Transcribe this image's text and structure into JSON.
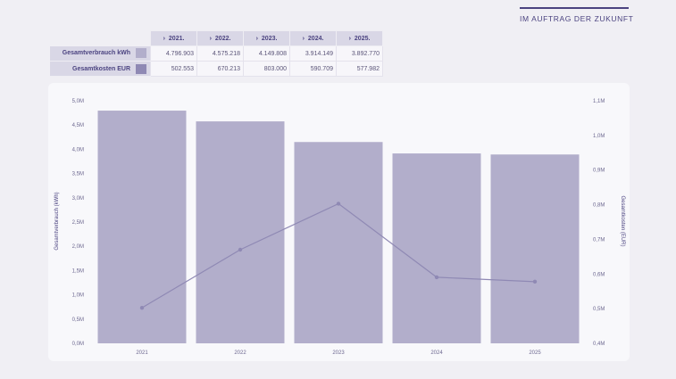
{
  "brand": {
    "tagline": "IM AUFTRAG DER ZUKUNFT"
  },
  "summary_table": {
    "years": [
      "2021.",
      "2022.",
      "2023.",
      "2024.",
      "2025."
    ],
    "rows": [
      {
        "label": "Gesamtverbrauch kWh",
        "swatch_color": "#b2aecb",
        "values": [
          "4.796.903",
          "4.575.218",
          "4.149.808",
          "3.914.149",
          "3.892.770"
        ]
      },
      {
        "label": "Gesamtkosten EUR",
        "swatch_color": "#8f89b4",
        "values": [
          "502.553",
          "670.213",
          "803.000",
          "590.709",
          "577.982"
        ]
      }
    ]
  },
  "colors": {
    "bar": "#b2aecb",
    "line": "#8f89b4",
    "text": "#4b4380"
  },
  "chart_data": {
    "type": "bar",
    "categories": [
      "2021",
      "2022",
      "2023",
      "2024",
      "2025"
    ],
    "series": [
      {
        "name": "Gesamtverbrauch kWh",
        "type": "bar",
        "axis": "left",
        "values": [
          4796903,
          4575218,
          4149808,
          3914149,
          3892770
        ]
      },
      {
        "name": "Gesamtkosten EUR",
        "type": "line",
        "axis": "right",
        "values": [
          502553,
          670213,
          803000,
          590709,
          577982
        ]
      }
    ],
    "ylabel": "Gesamtverbrauch (kWh)",
    "y2label": "Gesamtkosten (EUR)",
    "ylim": [
      0,
      5000000
    ],
    "y2lim": [
      400000,
      1100000
    ],
    "yticks": [
      0,
      500000,
      1000000,
      1500000,
      2000000,
      2500000,
      3000000,
      3500000,
      4000000,
      4500000,
      5000000
    ],
    "ytick_labels": [
      "0,0M",
      "0,5M",
      "1,0M",
      "1,5M",
      "2,0M",
      "2,5M",
      "3,0M",
      "3,5M",
      "4,0M",
      "4,5M",
      "5,0M"
    ],
    "y2ticks": [
      400000,
      500000,
      600000,
      700000,
      800000,
      900000,
      1000000,
      1100000
    ],
    "y2tick_labels": [
      "0,4M",
      "0,5M",
      "0,6M",
      "0,7M",
      "0,8M",
      "0,9M",
      "1,0M",
      "1,1M"
    ],
    "grid": false
  }
}
